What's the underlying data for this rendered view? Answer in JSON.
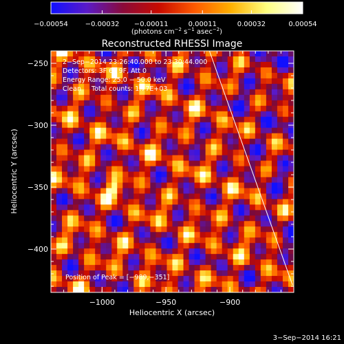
{
  "chart_data": {
    "type": "heatmap",
    "title": "Reconstructed RHESSI Image",
    "xlabel": "Heliocentric X (arcsec)",
    "ylabel": "Heliocentric Y (arcsec)",
    "xlim": [
      -1040,
      -850
    ],
    "ylim": [
      -435,
      -240
    ],
    "x_ticks": [
      -1000,
      -950,
      -900
    ],
    "x_tick_labels": [
      "−1000",
      "−950",
      "−900"
    ],
    "y_ticks": [
      -250,
      -300,
      -350,
      -400
    ],
    "y_tick_labels": [
      "−250",
      "−300",
      "−350",
      "−400"
    ],
    "colorbar": {
      "range": [
        -0.00054,
        0.00054
      ],
      "tick_values": [
        -0.00054,
        -0.00032,
        -0.00011,
        0.00011,
        0.00032,
        0.00054
      ],
      "tick_labels": [
        "−0.00054",
        "−0.00032",
        "−0.00011",
        "0.00011",
        "0.00032",
        "0.00054"
      ],
      "unit_prefix": "(photons cm",
      "unit_exp1": "−2",
      "unit_mid": " s",
      "unit_exp2": "−1",
      "unit_mid2": " asec",
      "unit_exp3": "−2",
      "unit_suffix": ")",
      "colors": [
        "#1010ff",
        "#5a1ac8",
        "#8a0a3a",
        "#c80a00",
        "#ff5a00",
        "#ffb000",
        "#ffff80",
        "#ffffff"
      ]
    },
    "annotations": [
      "2−Sep−2014 23:26:40.000 to 23:30:44.000",
      "Detectors: 3F 6F 9F, Att 0",
      "Energy Range: 25.0 − 50.0 keV",
      "Clean     Total counts: 1.77E+03"
    ],
    "peak_label": "Position of Peak = [−989,−351]",
    "peak": [
      -989,
      -351
    ],
    "limb": {
      "x": [
        -916,
        -851
      ],
      "y": [
        -240,
        -429
      ]
    },
    "grid": false
  },
  "timestamp": "3−Sep−2014 16:21",
  "colors": {
    "background": "#000000",
    "text": "#ffffff",
    "limb": "#ffffff"
  }
}
